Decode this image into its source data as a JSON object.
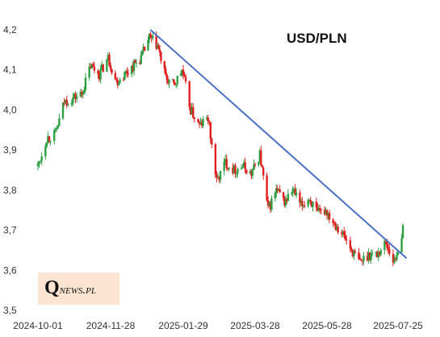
{
  "chart_data": {
    "type": "candlestick",
    "title": "USD/PLN",
    "xlabel": "",
    "ylabel": "",
    "ylim": [
      3.5,
      4.2
    ],
    "y_ticks": [
      "4,2",
      "4,1",
      "4,0",
      "3,9",
      "3,8",
      "3,7",
      "3,6",
      "3,5"
    ],
    "y_tick_values": [
      4.2,
      4.1,
      4.0,
      3.9,
      3.8,
      3.7,
      3.6,
      3.5
    ],
    "x_ticks": [
      "2024-10-01",
      "2024-11-28",
      "2025-01-29",
      "2025-03-28",
      "2025-05-28",
      "2025-07-25"
    ],
    "x_tick_dates": [
      "2024-10-01",
      "2024-11-28",
      "2025-01-29",
      "2025-03-28",
      "2025-05-28",
      "2025-07-25"
    ],
    "grid": false,
    "colors": {
      "up": "#2ea043",
      "down": "#e02020",
      "trendline": "#4a72c4"
    },
    "close_series": {
      "x": [
        "2024-10-01",
        "2024-10-08",
        "2024-10-15",
        "2024-10-22",
        "2024-10-29",
        "2024-11-05",
        "2024-11-12",
        "2024-11-19",
        "2024-11-26",
        "2024-12-03",
        "2024-12-10",
        "2024-12-17",
        "2024-12-24",
        "2024-12-31",
        "2025-01-07",
        "2025-01-14",
        "2025-01-21",
        "2025-01-28",
        "2025-02-04",
        "2025-02-11",
        "2025-02-18",
        "2025-02-25",
        "2025-03-04",
        "2025-03-11",
        "2025-03-18",
        "2025-03-25",
        "2025-04-01",
        "2025-04-08",
        "2025-04-15",
        "2025-04-22",
        "2025-04-29",
        "2025-05-06",
        "2025-05-13",
        "2025-05-20",
        "2025-05-27",
        "2025-06-03",
        "2025-06-10",
        "2025-06-17",
        "2025-06-24",
        "2025-07-01",
        "2025-07-08",
        "2025-07-15",
        "2025-07-22",
        "2025-07-29"
      ],
      "y": [
        3.86,
        3.93,
        3.94,
        4.02,
        4.03,
        4.04,
        4.11,
        4.09,
        4.13,
        4.07,
        4.09,
        4.11,
        4.13,
        4.18,
        4.16,
        4.08,
        4.06,
        4.1,
        4.0,
        3.96,
        3.98,
        3.82,
        3.87,
        3.85,
        3.86,
        3.84,
        3.89,
        3.75,
        3.8,
        3.77,
        3.8,
        3.76,
        3.78,
        3.74,
        3.75,
        3.72,
        3.69,
        3.65,
        3.62,
        3.64,
        3.64,
        3.67,
        3.62,
        3.7
      ]
    },
    "trendline": {
      "start": [
        "2025-01-01",
        4.2
      ],
      "end": [
        "2025-08-01",
        3.63
      ]
    }
  },
  "logo": {
    "initial": "Q",
    "rest": "news.pl"
  }
}
